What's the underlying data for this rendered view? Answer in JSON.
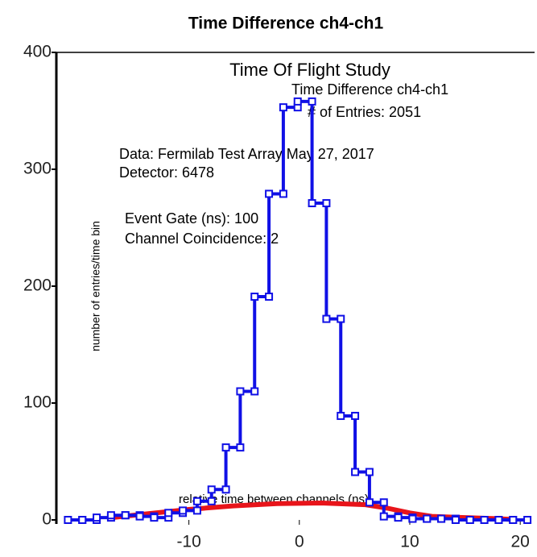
{
  "chart_data": {
    "type": "histogram",
    "title": "Time Difference ch4-ch1",
    "ylabel": "number of entries/time bin",
    "xlabel": "relative time between channels (ns)",
    "annotations": [
      "Time Of Flight Study",
      "Time Difference ch4-ch1",
      "# of Entries: 2051",
      "Data: Fermilab Test Array May 27, 2017",
      "Detector: 6478",
      "Event Gate (ns): 100",
      "Channel Coincidence: 2"
    ],
    "bins": [
      -20.95,
      -19.65,
      -18.35,
      -17.05,
      -15.75,
      -14.45,
      -13.15,
      -11.85,
      -10.55,
      -9.25,
      -7.95,
      -6.65,
      -5.35,
      -4.05,
      -2.75,
      -1.45,
      -0.15,
      1.15,
      2.45,
      3.75,
      5.05,
      6.35,
      7.65,
      8.95,
      10.25,
      11.55,
      12.85,
      14.15,
      15.45,
      16.75,
      18.05,
      19.35,
      20.65
    ],
    "values": [
      0,
      0,
      2,
      4,
      4,
      3,
      2,
      6,
      8,
      16,
      26,
      62,
      110,
      191,
      279,
      353,
      358,
      271,
      172,
      89,
      41,
      15,
      3,
      2,
      1,
      1,
      1,
      0,
      0,
      0,
      0,
      0
    ],
    "color": "#1010e6",
    "fit": {
      "color": "#e8141a",
      "x": [
        -17,
        -14,
        -10,
        -6,
        -2,
        2,
        6,
        8,
        10,
        12,
        15,
        18,
        19
      ],
      "values": [
        2,
        5,
        9,
        12,
        14,
        14.5,
        13,
        10,
        6,
        3,
        2,
        1,
        0.5
      ]
    },
    "xlim": [
      -22,
      21.3
    ],
    "ylim": [
      0,
      400
    ],
    "xticks": [
      -10,
      0,
      10,
      20
    ],
    "yticks": [
      0,
      100,
      200,
      300,
      400
    ]
  }
}
